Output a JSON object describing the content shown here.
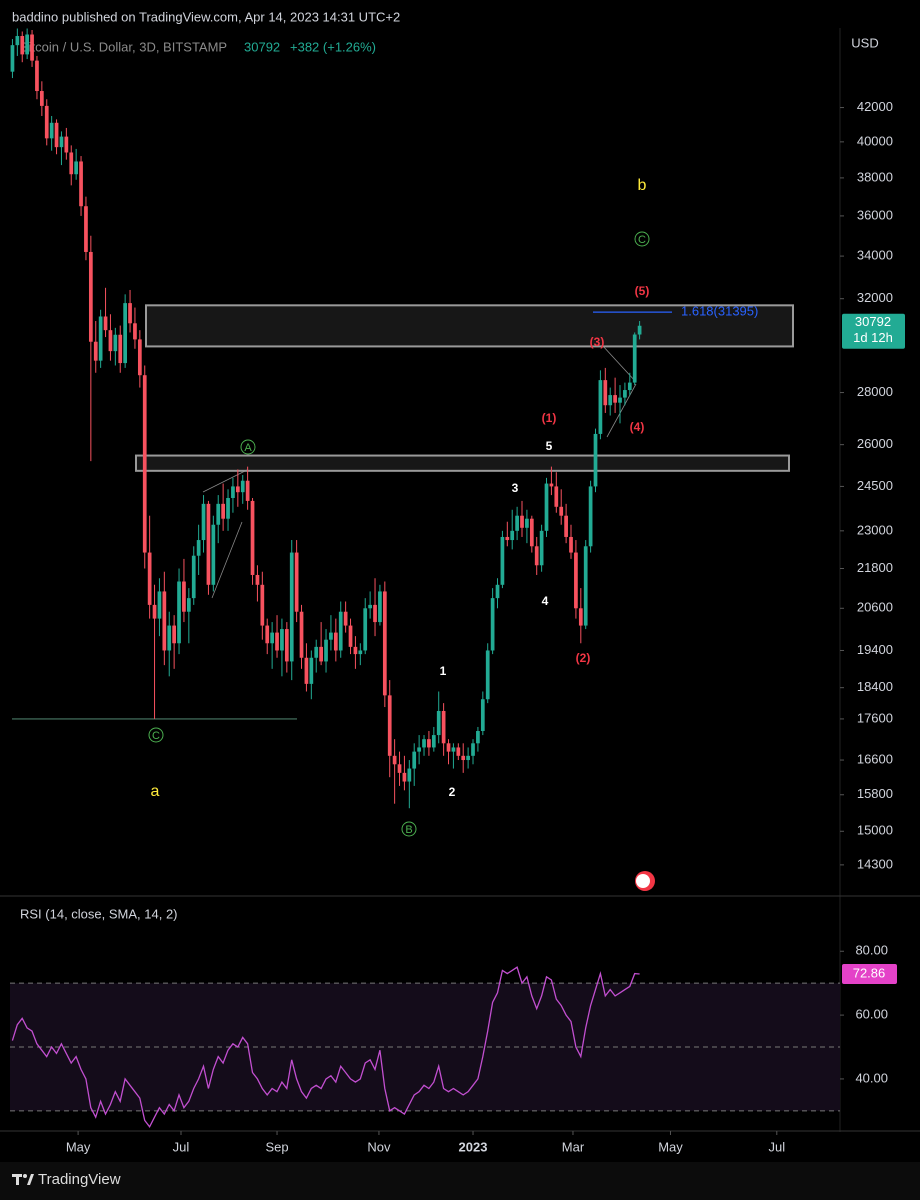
{
  "header": "baddino published on TradingView.com, Apr 14, 2023 14:31 UTC+2",
  "footer": "TradingView",
  "chart_data": [
    {
      "type": "candlestick",
      "symbol": "Bitcoin / U.S. Dollar, 3D, BITSTAMP",
      "change_label": "+382 (+1.26%)",
      "currency": "USD",
      "countdown": "1d 12h",
      "log_scale": true,
      "up_color": "#22ab94",
      "down_color": "#f7525f",
      "open": [
        44200,
        45900,
        46500,
        45300,
        46600,
        44900,
        43000,
        42100,
        40200,
        41100,
        39700,
        40300,
        39400,
        38200,
        38900,
        36500,
        34200,
        30100,
        29300,
        31200,
        30600,
        29700,
        30400,
        29200,
        31800,
        30900,
        30200,
        28700,
        22300,
        20700,
        20300,
        21100,
        19400,
        20100,
        19600,
        21400,
        20500,
        20900,
        22200,
        22700,
        23900,
        21300,
        23200,
        23900,
        23400,
        24100,
        24500,
        24300,
        24700,
        24000,
        21600,
        21300,
        20100,
        19600,
        19900,
        19400,
        20000,
        19100,
        22300,
        20500,
        19200,
        18500,
        19200,
        19500,
        19100,
        19700,
        19900,
        19400,
        20500,
        20100,
        19500,
        19300,
        19400,
        20600,
        20700,
        20200,
        21100,
        18200,
        16700,
        16500,
        16300,
        16100,
        16400,
        16800,
        16900,
        17100,
        16900,
        17200,
        17800,
        17000,
        16800,
        16900,
        16700,
        16600,
        16700,
        17000,
        17300,
        18100,
        19400,
        20900,
        21300,
        22800,
        22700,
        23000,
        23500,
        23100,
        23400,
        22500,
        21900,
        23000,
        24600,
        24500,
        23800,
        23500,
        22800,
        22300,
        20600,
        20100,
        22500,
        24500,
        26400,
        28500,
        27500,
        27900,
        27600,
        27800,
        28100,
        28400,
        30410
      ],
      "high": [
        46300,
        47000,
        46800,
        47000,
        46900,
        45200,
        43600,
        42500,
        41500,
        41300,
        40600,
        40800,
        39800,
        39600,
        39200,
        37000,
        35000,
        31000,
        31500,
        32500,
        31300,
        30700,
        30800,
        32200,
        32400,
        31600,
        30600,
        29100,
        23500,
        21300,
        21500,
        21700,
        20500,
        20400,
        21800,
        22100,
        21200,
        22500,
        23200,
        24200,
        24000,
        23500,
        24200,
        24600,
        24400,
        24800,
        25100,
        24900,
        25200,
        24100,
        21900,
        21700,
        20300,
        20200,
        20400,
        20300,
        20200,
        22700,
        22700,
        20700,
        19600,
        19400,
        19700,
        20200,
        20000,
        20400,
        20300,
        20800,
        20800,
        20300,
        19800,
        19600,
        20900,
        21100,
        21500,
        21300,
        21400,
        18600,
        17100,
        16800,
        16700,
        16600,
        17000,
        17200,
        17200,
        17300,
        17400,
        18300,
        18000,
        17100,
        17000,
        17000,
        17000,
        16900,
        17100,
        17400,
        18300,
        19600,
        21200,
        21500,
        23000,
        23300,
        23700,
        23800,
        24000,
        23700,
        23500,
        22800,
        23200,
        24800,
        25200,
        25000,
        24400,
        23900,
        23200,
        22700,
        21200,
        22700,
        24700,
        26600,
        28900,
        29000,
        28200,
        28600,
        28300,
        28400,
        28800,
        30500,
        31000
      ],
      "low": [
        43800,
        45200,
        44800,
        45000,
        44500,
        42500,
        41500,
        39800,
        39500,
        39300,
        38700,
        39000,
        37600,
        37900,
        36000,
        33800,
        25400,
        28800,
        29000,
        30300,
        29300,
        29100,
        28800,
        29000,
        30500,
        29800,
        28200,
        21800,
        20300,
        17600,
        19800,
        19000,
        18700,
        18900,
        19300,
        20200,
        19600,
        20700,
        21600,
        22300,
        21000,
        21100,
        22600,
        23000,
        23000,
        23600,
        23800,
        23900,
        23700,
        21300,
        20800,
        19700,
        19300,
        18900,
        19200,
        18700,
        18800,
        18600,
        20200,
        18900,
        18300,
        18100,
        18800,
        19000,
        18800,
        19400,
        19100,
        19200,
        19900,
        19300,
        18900,
        19000,
        19300,
        20300,
        19800,
        20100,
        17900,
        16200,
        15600,
        16000,
        15900,
        15500,
        16000,
        16500,
        16700,
        16700,
        16800,
        17000,
        16700,
        16500,
        16400,
        16600,
        16300,
        16400,
        16500,
        16800,
        17200,
        18000,
        19300,
        20600,
        21200,
        22500,
        22400,
        22700,
        22800,
        22600,
        22300,
        21600,
        21700,
        22800,
        24200,
        23600,
        23200,
        22600,
        22100,
        20300,
        19600,
        20000,
        22300,
        24300,
        26200,
        27200,
        27100,
        27200,
        26800,
        27500,
        27900,
        28300,
        30200
      ],
      "close": [
        45900,
        46500,
        45300,
        46600,
        44900,
        43000,
        42100,
        40200,
        41100,
        39700,
        40300,
        39400,
        38200,
        38900,
        36500,
        34200,
        30100,
        29300,
        31200,
        30600,
        29700,
        30400,
        29200,
        31800,
        30900,
        30200,
        28700,
        22300,
        20700,
        20300,
        21100,
        19400,
        20100,
        19600,
        21400,
        20500,
        20900,
        22200,
        22700,
        23900,
        21300,
        23200,
        23900,
        23400,
        24100,
        24500,
        24300,
        24700,
        24000,
        21600,
        21300,
        20100,
        19600,
        19900,
        19400,
        20000,
        19100,
        22300,
        20500,
        19200,
        18500,
        19200,
        19500,
        19100,
        19700,
        19900,
        19400,
        20500,
        20100,
        19500,
        19300,
        19400,
        20600,
        20700,
        20200,
        21100,
        18200,
        16700,
        16500,
        16300,
        16100,
        16400,
        16800,
        16900,
        17100,
        16900,
        17200,
        17800,
        17000,
        16800,
        16900,
        16700,
        16600,
        16700,
        17000,
        17300,
        18100,
        19400,
        20900,
        21300,
        22800,
        22700,
        23000,
        23500,
        23100,
        23400,
        22500,
        21900,
        23000,
        24600,
        24500,
        23800,
        23500,
        22800,
        22300,
        20600,
        20100,
        22500,
        24500,
        26400,
        28500,
        27500,
        27900,
        27600,
        27800,
        28100,
        28400,
        30410,
        30792
      ],
      "xlim": [
        -0.5,
        168.9
      ],
      "xticks": [
        {
          "value": 13.4,
          "label": "May"
        },
        {
          "value": 34.4,
          "label": "Jul"
        },
        {
          "value": 54,
          "label": "Sep"
        },
        {
          "value": 74.8,
          "label": "Nov"
        },
        {
          "value": 94,
          "label": "2023"
        },
        {
          "value": 114.4,
          "label": "Mar"
        },
        {
          "value": 134.3,
          "label": "May"
        },
        {
          "value": 156,
          "label": "Jul"
        }
      ],
      "ylim": [
        13700,
        46900
      ],
      "yticks": [
        42000,
        40000,
        38000,
        36000,
        34000,
        32000,
        28000,
        26000,
        24500,
        23000,
        21800,
        20600,
        19400,
        18400,
        17600,
        16600,
        15800,
        15000,
        14300
      ],
      "zones": [
        {
          "top": 31700,
          "bottom": 29900
        },
        {
          "top": 25600,
          "bottom": 25050
        }
      ],
      "support": 17600,
      "fib": {
        "label": "1.618(31395)",
        "value": 31395,
        "color": "#2962ff"
      },
      "annotations": [
        "b",
        "C",
        "(5)",
        "(3)",
        "(1)",
        "(4)",
        "5",
        "A",
        "3",
        "4",
        "(2)",
        "1",
        "C",
        "a",
        "2",
        "B"
      ]
    },
    {
      "type": "line",
      "title": "RSI (14, close, SMA, 14, 2)",
      "color": "#c24fd0",
      "tag_color": "#e442c8",
      "values": [
        52,
        57,
        59,
        56,
        55,
        51,
        49,
        47,
        50,
        48,
        51,
        48,
        45,
        47,
        43,
        40,
        31,
        28,
        33,
        29,
        32,
        36,
        33,
        40,
        38,
        36,
        34,
        27,
        25,
        28,
        31,
        29,
        32,
        30,
        35,
        31,
        33,
        37,
        40,
        44,
        37,
        43,
        47,
        45,
        49,
        51,
        50,
        53,
        51,
        42,
        40,
        37,
        35,
        37,
        36,
        39,
        37,
        46,
        40,
        36,
        34,
        37,
        38,
        37,
        40,
        41,
        39,
        44,
        42,
        40,
        39,
        40,
        45,
        46,
        43,
        49,
        37,
        30,
        31,
        30,
        29,
        32,
        35,
        36,
        38,
        37,
        39,
        44,
        37,
        36,
        37,
        36,
        35,
        36,
        38,
        40,
        47,
        55,
        64,
        67,
        74,
        73,
        74,
        75,
        70,
        72,
        66,
        62,
        66,
        72,
        71,
        65,
        63,
        60,
        58,
        50,
        47,
        56,
        63,
        68,
        73,
        66,
        68,
        66,
        67,
        68,
        69,
        73,
        72.86
      ],
      "ylim": [
        24,
        97
      ],
      "yticks": [
        {
          "value": 80,
          "label": "80.00"
        },
        {
          "value": 60,
          "label": "60.00"
        },
        {
          "value": 40,
          "label": "40.00"
        }
      ],
      "levels": [
        70,
        50,
        30
      ],
      "band": [
        70,
        30
      ]
    }
  ]
}
